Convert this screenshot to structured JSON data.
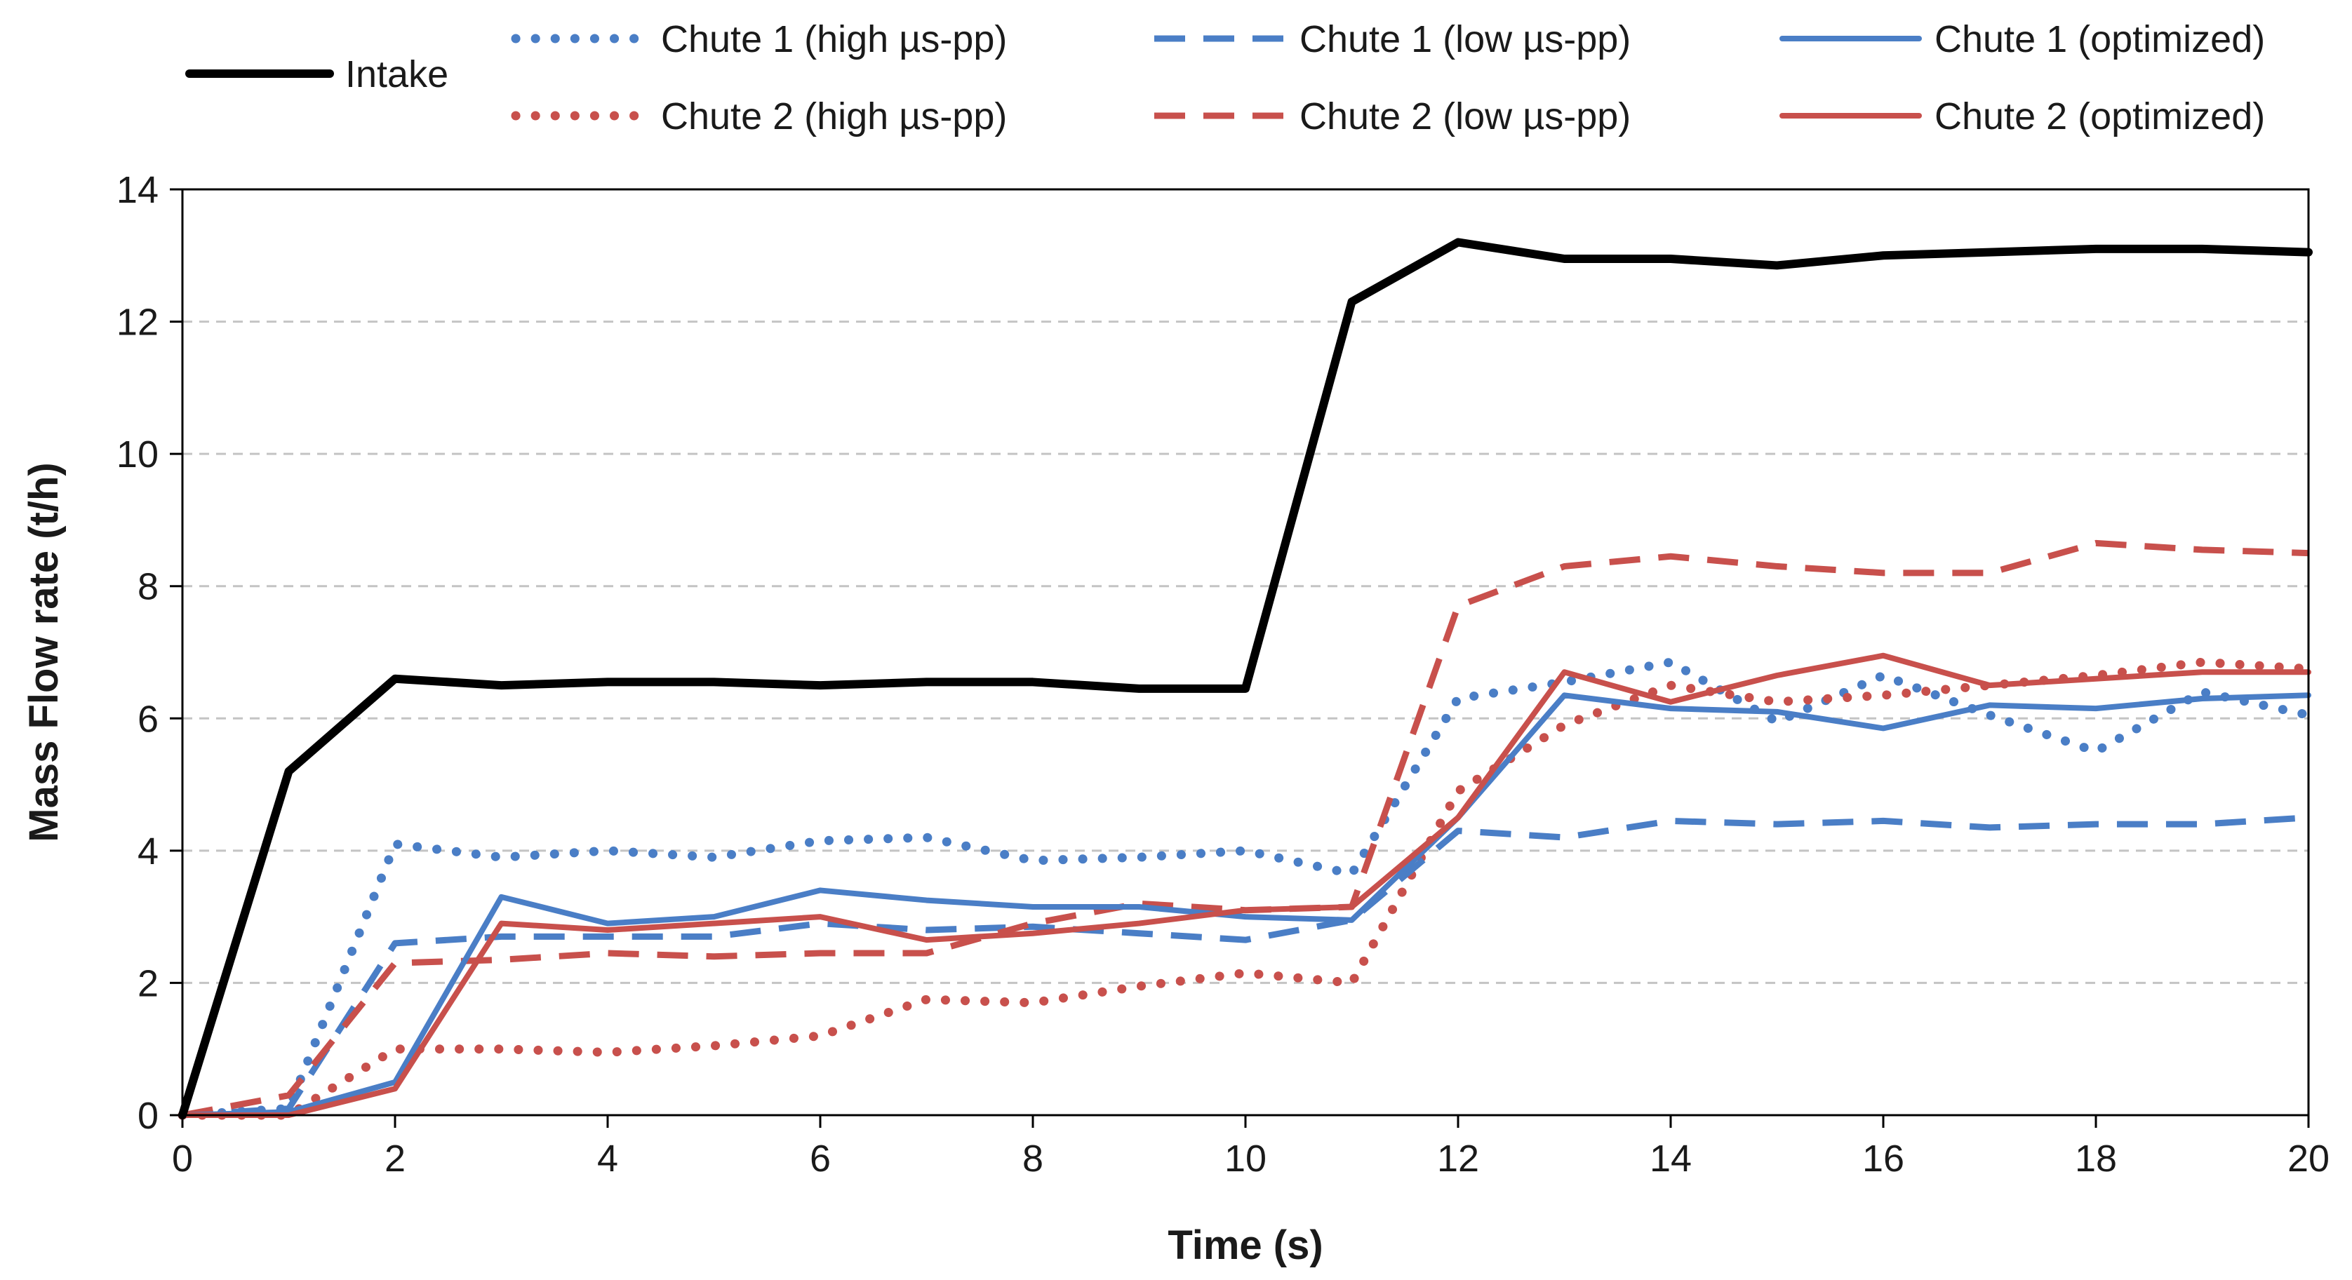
{
  "chart_data": {
    "type": "line",
    "title": "",
    "xlabel": "Time (s)",
    "ylabel": "Mass Flow rate (t/h)",
    "xlim": [
      0,
      20
    ],
    "ylim": [
      0,
      14
    ],
    "xticks": [
      0,
      2,
      4,
      6,
      8,
      10,
      12,
      14,
      16,
      18,
      20
    ],
    "yticks": [
      0,
      2,
      4,
      6,
      8,
      10,
      12,
      14
    ],
    "grid": "horizontal dashed",
    "legend_position": "top",
    "x": [
      0,
      1,
      2,
      3,
      4,
      5,
      6,
      7,
      8,
      9,
      10,
      11,
      12,
      13,
      14,
      15,
      16,
      17,
      18,
      19,
      20
    ],
    "series": [
      {
        "name": "Intake",
        "color": "#000000",
        "style": "solid",
        "values": [
          0.0,
          5.2,
          6.6,
          6.5,
          6.55,
          6.55,
          6.5,
          6.55,
          6.55,
          6.45,
          6.45,
          12.3,
          13.2,
          12.95,
          12.95,
          12.85,
          13.0,
          13.05,
          13.1,
          13.1,
          13.05
        ]
      },
      {
        "name": "Chute 1 (high µs-pp)",
        "color": "#4A7EC6",
        "style": "dotted",
        "values": [
          0.0,
          0.1,
          4.1,
          3.9,
          4.0,
          3.9,
          4.15,
          4.2,
          3.85,
          3.9,
          4.0,
          3.65,
          6.3,
          6.55,
          6.85,
          5.95,
          6.65,
          6.05,
          5.5,
          6.4,
          6.05
        ]
      },
      {
        "name": "Chute 1 (low µs-pp)",
        "color": "#4A7EC6",
        "style": "dashed",
        "values": [
          0.0,
          0.1,
          2.6,
          2.7,
          2.7,
          2.7,
          2.9,
          2.8,
          2.85,
          2.75,
          2.65,
          2.95,
          4.3,
          4.2,
          4.45,
          4.4,
          4.45,
          4.35,
          4.4,
          4.4,
          4.5
        ]
      },
      {
        "name": "Chute 1 (optimized)",
        "color": "#4A7EC6",
        "style": "solid",
        "values": [
          0.0,
          0.05,
          0.5,
          3.3,
          2.9,
          3.0,
          3.4,
          3.25,
          3.15,
          3.15,
          3.0,
          2.95,
          4.5,
          6.35,
          6.15,
          6.1,
          5.85,
          6.2,
          6.15,
          6.3,
          6.35
        ]
      },
      {
        "name": "Chute 2 (high µs-pp)",
        "color": "#C8504C",
        "style": "dotted",
        "values": [
          0.0,
          0.0,
          1.0,
          1.0,
          0.95,
          1.05,
          1.2,
          1.75,
          1.7,
          1.95,
          2.15,
          2.0,
          4.9,
          5.9,
          6.5,
          6.25,
          6.35,
          6.5,
          6.65,
          6.85,
          6.75
        ]
      },
      {
        "name": "Chute 2 (low µs-pp)",
        "color": "#C8504C",
        "style": "dashed",
        "values": [
          0.0,
          0.3,
          2.3,
          2.35,
          2.45,
          2.4,
          2.45,
          2.45,
          2.9,
          3.2,
          3.1,
          3.15,
          7.7,
          8.3,
          8.45,
          8.3,
          8.2,
          8.2,
          8.65,
          8.55,
          8.5
        ]
      },
      {
        "name": "Chute 2 (optimized)",
        "color": "#C8504C",
        "style": "solid",
        "values": [
          0.0,
          0.0,
          0.4,
          2.9,
          2.8,
          2.9,
          3.0,
          2.65,
          2.75,
          2.9,
          3.1,
          3.15,
          4.5,
          6.7,
          6.25,
          6.65,
          6.95,
          6.5,
          6.6,
          6.7,
          6.7
        ]
      }
    ]
  }
}
